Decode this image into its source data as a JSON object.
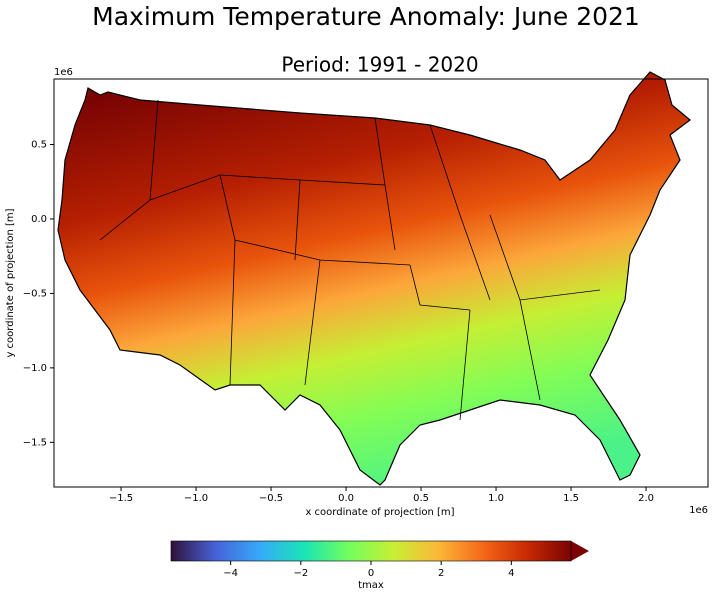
{
  "chart_data": {
    "type": "map",
    "title": "Maximum Temperature Anomaly: June 2021",
    "subtitle": "Period: 1991 - 2020",
    "x_label": "x coordinate of projection [m]",
    "y_label": "y coordinate of projection [m]",
    "x_offset": "1e6",
    "y_offset": "1e6",
    "xlim": [
      -1.947,
      2.413
    ],
    "ylim": [
      -1.8,
      0.94
    ],
    "xticks": [
      {
        "value": -1.5,
        "label": "−1.5"
      },
      {
        "value": -1.0,
        "label": "−1.0"
      },
      {
        "value": -0.5,
        "label": "−0.5"
      },
      {
        "value": 0.0,
        "label": "0.0"
      },
      {
        "value": 0.5,
        "label": "0.5"
      },
      {
        "value": 1.0,
        "label": "1.0"
      },
      {
        "value": 1.5,
        "label": "1.5"
      },
      {
        "value": 2.0,
        "label": "2.0"
      }
    ],
    "yticks": [
      {
        "value": -1.5,
        "label": "−1.5"
      },
      {
        "value": -1.0,
        "label": "−1.0"
      },
      {
        "value": -0.5,
        "label": "−0.5"
      },
      {
        "value": 0.0,
        "label": "0.0"
      },
      {
        "value": 0.5,
        "label": "0.5"
      }
    ],
    "colorbar": {
      "label": "tmax",
      "colormap": "turbo",
      "clim": [
        -5.7,
        5.7
      ],
      "ticks": [
        {
          "value": -4,
          "label": "−4"
        },
        {
          "value": -2,
          "label": "−2"
        },
        0,
        2,
        4
      ]
    }
  }
}
